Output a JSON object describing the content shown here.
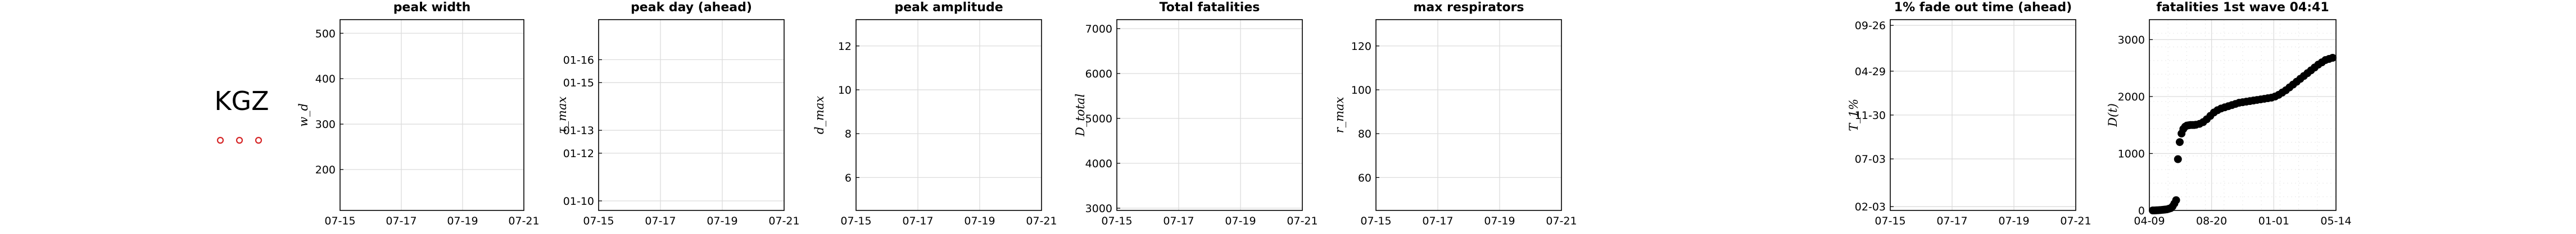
{
  "country": {
    "code": "KGZ"
  },
  "charts": [
    {
      "type": "line",
      "title": "peak width",
      "ylabel": "w_d",
      "x_ticks": [
        "07-15",
        "07-17",
        "07-19",
        "07-21"
      ],
      "ylim": [
        110,
        530
      ],
      "y_ticks": [
        {
          "v": 200,
          "label": "200"
        },
        {
          "v": 300,
          "label": "300"
        },
        {
          "v": 400,
          "label": "400"
        },
        {
          "v": 500,
          "label": "500"
        }
      ],
      "series": []
    },
    {
      "type": "line",
      "title": "peak day (ahead)",
      "ylabel": "τ_max",
      "x_ticks": [
        "07-15",
        "07-17",
        "07-19",
        "07-21"
      ],
      "ylim": [
        0,
        1
      ],
      "y_ticks": [
        {
          "v": 0.05,
          "label": "01-10"
        },
        {
          "v": 0.3,
          "label": "01-12"
        },
        {
          "v": 0.42,
          "label": "01-13"
        },
        {
          "v": 0.67,
          "label": "01-15"
        },
        {
          "v": 0.79,
          "label": "01-16"
        }
      ],
      "series": []
    },
    {
      "type": "line",
      "title": "peak amplitude",
      "ylabel": "d_max",
      "x_ticks": [
        "07-15",
        "07-17",
        "07-19",
        "07-21"
      ],
      "ylim": [
        4.5,
        13.2
      ],
      "y_ticks": [
        {
          "v": 6,
          "label": "6"
        },
        {
          "v": 8,
          "label": "8"
        },
        {
          "v": 10,
          "label": "10"
        },
        {
          "v": 12,
          "label": "12"
        }
      ],
      "series": []
    },
    {
      "type": "line",
      "title": "Total fatalities",
      "ylabel": "D_total",
      "x_ticks": [
        "07-15",
        "07-17",
        "07-19",
        "07-21"
      ],
      "ylim": [
        2950,
        7200
      ],
      "y_ticks": [
        {
          "v": 3000,
          "label": "3000"
        },
        {
          "v": 4000,
          "label": "4000"
        },
        {
          "v": 5000,
          "label": "5000"
        },
        {
          "v": 6000,
          "label": "6000"
        },
        {
          "v": 7000,
          "label": "7000"
        }
      ],
      "series": []
    },
    {
      "type": "line",
      "title": "max respirators",
      "ylabel": "r_max",
      "x_ticks": [
        "07-15",
        "07-17",
        "07-19",
        "07-21"
      ],
      "ylim": [
        45,
        132
      ],
      "y_ticks": [
        {
          "v": 60,
          "label": "60"
        },
        {
          "v": 80,
          "label": "80"
        },
        {
          "v": 100,
          "label": "100"
        },
        {
          "v": 120,
          "label": "120"
        }
      ],
      "series": []
    },
    {
      "type": "line",
      "title": "1% fade out time (ahead)",
      "ylabel": "T_1%",
      "x_ticks": [
        "07-15",
        "07-17",
        "07-19",
        "07-21"
      ],
      "ylim": [
        0,
        1
      ],
      "y_ticks": [
        {
          "v": 0.02,
          "label": "02-03"
        },
        {
          "v": 0.27,
          "label": "07-03"
        },
        {
          "v": 0.5,
          "label": "11-30"
        },
        {
          "v": 0.73,
          "label": "04-29"
        },
        {
          "v": 0.97,
          "label": "09-26"
        }
      ],
      "series": []
    },
    {
      "type": "scatter",
      "title": "fatalities 1st wave 04:41",
      "ylabel": "D(t)",
      "x_ticks": [
        "04-09",
        "08-20",
        "01-01",
        "05-14"
      ],
      "ylim": [
        0,
        3350
      ],
      "y_ticks": [
        {
          "v": 0,
          "label": "0"
        },
        {
          "v": 1000,
          "label": "1000"
        },
        {
          "v": 2000,
          "label": "2000"
        },
        {
          "v": 3000,
          "label": "3000"
        }
      ],
      "x": [
        0,
        5,
        10,
        15,
        20,
        25,
        30,
        35,
        40,
        45,
        50,
        55,
        60,
        65,
        70,
        75,
        80,
        85,
        90,
        95,
        100,
        105,
        110,
        115,
        120,
        130,
        140,
        150,
        160,
        170,
        180,
        190,
        200,
        210,
        220,
        230,
        240,
        250,
        260,
        270,
        280,
        290,
        300,
        310,
        320,
        330,
        340,
        350,
        360,
        370,
        380,
        390,
        400,
        410,
        420,
        430,
        440,
        450,
        460,
        470,
        480,
        490,
        500
      ],
      "y": [
        0,
        0,
        2,
        4,
        6,
        9,
        12,
        16,
        20,
        30,
        40,
        70,
        120,
        180,
        900,
        1200,
        1350,
        1430,
        1470,
        1490,
        1495,
        1500,
        1500,
        1500,
        1505,
        1520,
        1550,
        1600,
        1660,
        1720,
        1760,
        1790,
        1810,
        1830,
        1850,
        1870,
        1890,
        1900,
        1910,
        1920,
        1930,
        1940,
        1950,
        1960,
        1970,
        1980,
        2000,
        2030,
        2070,
        2110,
        2160,
        2210,
        2260,
        2310,
        2360,
        2410,
        2460,
        2510,
        2560,
        2600,
        2640,
        2660,
        2680
      ]
    }
  ]
}
